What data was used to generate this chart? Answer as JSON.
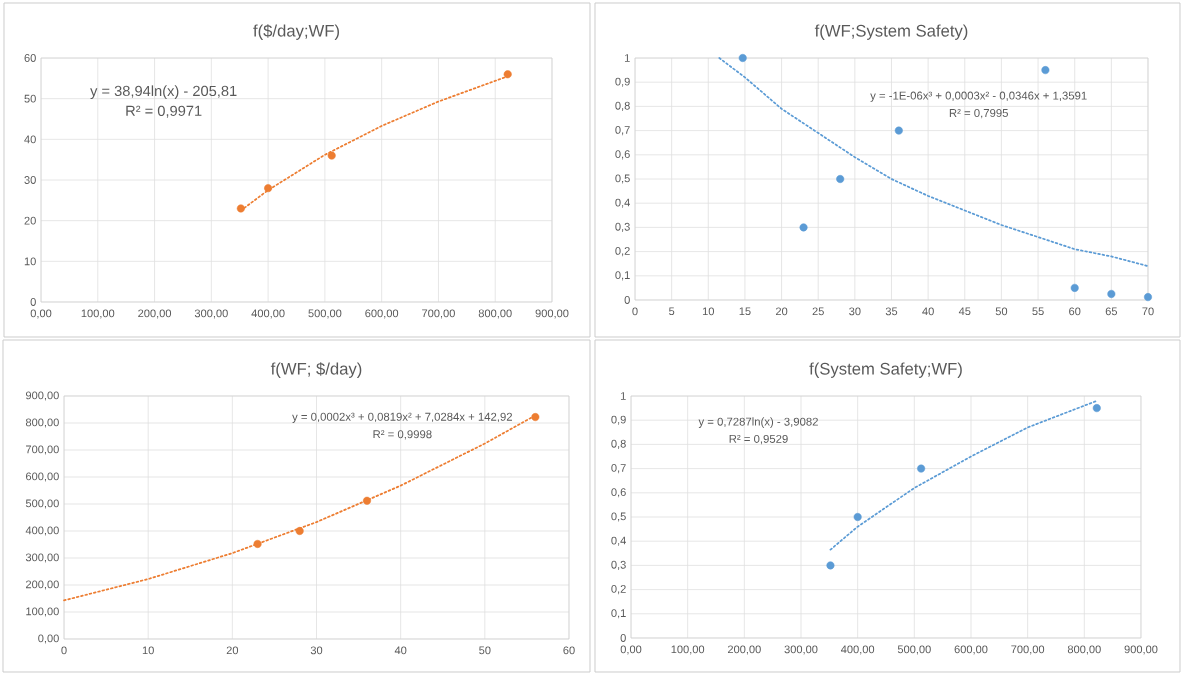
{
  "chart_data": [
    {
      "type": "scatter",
      "title": "f($/day;WF)",
      "annotations": [
        "y = 38,94ln(x) - 205,81",
        "R² = 0,9971"
      ],
      "grid": true,
      "marker": "circle",
      "xlim": [
        0,
        900
      ],
      "xticks": [
        {
          "value": 0,
          "label": "0,00"
        },
        {
          "value": 100,
          "label": "100,00"
        },
        {
          "value": 200,
          "label": "200,00"
        },
        {
          "value": 300,
          "label": "300,00"
        },
        {
          "value": 400,
          "label": "400,00"
        },
        {
          "value": 500,
          "label": "500,00"
        },
        {
          "value": 600,
          "label": "600,00"
        },
        {
          "value": 700,
          "label": "700,00"
        },
        {
          "value": 800,
          "label": "800,00"
        },
        {
          "value": 900,
          "label": "900,00"
        }
      ],
      "ylim": [
        0,
        60
      ],
      "yticks": [
        0,
        10,
        20,
        30,
        40,
        50,
        60
      ],
      "series": [
        {
          "color": "#ed7d31",
          "x": [
            352,
            400,
            512,
            822
          ],
          "values": [
            23,
            28,
            36,
            56
          ]
        },
        {
          "type": "line",
          "line_style": "dotted",
          "marker": "none",
          "color": "#ed7d31",
          "x": [
            352,
            400,
            500,
            600,
            700,
            822
          ],
          "values": [
            22.5,
            27.5,
            36.2,
            43.3,
            49.3,
            55.5
          ]
        }
      ]
    },
    {
      "type": "scatter",
      "title": "f(WF;System Safety)",
      "annotations": [
        "y = -1E-06x³ + 0,0003x² - 0,0346x + 1,3591",
        "R² = 0,7995"
      ],
      "grid": true,
      "marker": "circle",
      "xlim": [
        0,
        70
      ],
      "xticks": [
        0,
        5,
        10,
        15,
        20,
        25,
        30,
        35,
        40,
        45,
        50,
        55,
        60,
        65,
        70
      ],
      "ylim": [
        0,
        1
      ],
      "yticks": [
        0,
        {
          "value": 0.1,
          "label": "0,1"
        },
        {
          "value": 0.2,
          "label": "0,2"
        },
        {
          "value": 0.3,
          "label": "0,3"
        },
        {
          "value": 0.4,
          "label": "0,4"
        },
        {
          "value": 0.5,
          "label": "0,5"
        },
        {
          "value": 0.6,
          "label": "0,6"
        },
        {
          "value": 0.7,
          "label": "0,7"
        },
        {
          "value": 0.8,
          "label": "0,8"
        },
        {
          "value": 0.9,
          "label": "0,9"
        },
        1
      ],
      "series": [
        {
          "color": "#5b9bd5",
          "x": [
            14.7,
            23,
            28,
            36,
            56,
            60,
            65,
            70
          ],
          "values": [
            1,
            0.3,
            0.5,
            0.7,
            0.95,
            0.05,
            0.025,
            0.012
          ]
        },
        {
          "type": "line",
          "line_style": "dotted",
          "marker": "none",
          "color": "#5b9bd5",
          "x": [
            11.5,
            15,
            20,
            25,
            30,
            35,
            40,
            45,
            50,
            55,
            60,
            65,
            70
          ],
          "values": [
            1.0,
            0.92,
            0.79,
            0.69,
            0.59,
            0.5,
            0.43,
            0.37,
            0.31,
            0.26,
            0.21,
            0.18,
            0.14
          ]
        }
      ]
    },
    {
      "type": "scatter",
      "title": "f(WF; $/day)",
      "annotations": [
        "y = 0,0002x³ + 0,0819x² + 7,0284x + 142,92",
        "R² = 0,9998"
      ],
      "grid": true,
      "marker": "circle",
      "xlim": [
        0,
        60
      ],
      "xticks": [
        0,
        10,
        20,
        30,
        40,
        50,
        60
      ],
      "ylim": [
        0,
        900
      ],
      "yticks": [
        {
          "value": 0,
          "label": "0,00"
        },
        {
          "value": 100,
          "label": "100,00"
        },
        {
          "value": 200,
          "label": "200,00"
        },
        {
          "value": 300,
          "label": "300,00"
        },
        {
          "value": 400,
          "label": "400,00"
        },
        {
          "value": 500,
          "label": "500,00"
        },
        {
          "value": 600,
          "label": "600,00"
        },
        {
          "value": 700,
          "label": "700,00"
        },
        {
          "value": 800,
          "label": "800,00"
        },
        {
          "value": 900,
          "label": "900,00"
        }
      ],
      "series": [
        {
          "color": "#ed7d31",
          "x": [
            23,
            28,
            36,
            56
          ],
          "values": [
            352,
            400,
            512,
            822
          ]
        },
        {
          "type": "line",
          "line_style": "dotted",
          "marker": "none",
          "color": "#ed7d31",
          "x": [
            0,
            10,
            20,
            30,
            40,
            50,
            56
          ],
          "values": [
            143,
            222,
            318,
            433,
            568,
            724,
            828
          ]
        }
      ]
    },
    {
      "type": "scatter",
      "title": "f(System Safety;WF)",
      "annotations": [
        "y = 0,7287ln(x) - 3,9082",
        "R² = 0,9529"
      ],
      "grid": true,
      "marker": "circle",
      "xlim": [
        0,
        900
      ],
      "xticks": [
        {
          "value": 0,
          "label": "0,00"
        },
        {
          "value": 100,
          "label": "100,00"
        },
        {
          "value": 200,
          "label": "200,00"
        },
        {
          "value": 300,
          "label": "300,00"
        },
        {
          "value": 400,
          "label": "400,00"
        },
        {
          "value": 500,
          "label": "500,00"
        },
        {
          "value": 600,
          "label": "600,00"
        },
        {
          "value": 700,
          "label": "700,00"
        },
        {
          "value": 800,
          "label": "800,00"
        },
        {
          "value": 900,
          "label": "900,00"
        }
      ],
      "ylim": [
        0,
        1
      ],
      "yticks": [
        0,
        {
          "value": 0.1,
          "label": "0,1"
        },
        {
          "value": 0.2,
          "label": "0,2"
        },
        {
          "value": 0.3,
          "label": "0,3"
        },
        {
          "value": 0.4,
          "label": "0,4"
        },
        {
          "value": 0.5,
          "label": "0,5"
        },
        {
          "value": 0.6,
          "label": "0,6"
        },
        {
          "value": 0.7,
          "label": "0,7"
        },
        {
          "value": 0.8,
          "label": "0,8"
        },
        {
          "value": 0.9,
          "label": "0,9"
        },
        1
      ],
      "series": [
        {
          "color": "#5b9bd5",
          "x": [
            352,
            400,
            512,
            822
          ],
          "values": [
            0.3,
            0.5,
            0.7,
            0.95
          ]
        },
        {
          "type": "line",
          "line_style": "dotted",
          "marker": "none",
          "color": "#5b9bd5",
          "x": [
            352,
            400,
            500,
            600,
            700,
            822
          ],
          "values": [
            0.365,
            0.46,
            0.62,
            0.75,
            0.87,
            0.98
          ]
        }
      ]
    }
  ]
}
